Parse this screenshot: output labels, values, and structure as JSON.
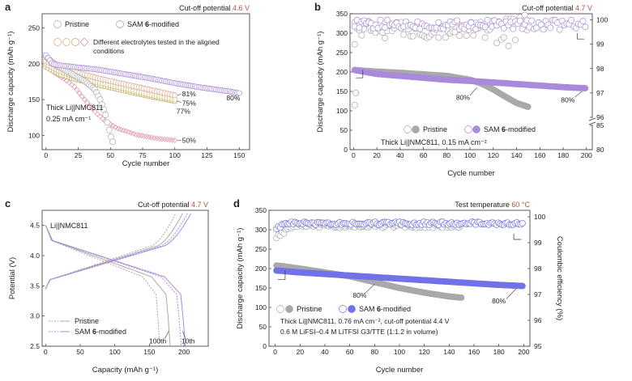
{
  "colors": {
    "pristine": "#a9a9a9",
    "sam": "#a98bdc",
    "sam_d": "#7272e8",
    "accent": "#c0504d",
    "e1": "#d8a889",
    "e2": "#d9b36a",
    "e3": "#b9a85a",
    "e4": "#d98a9a"
  },
  "legend_shared": {
    "pristine": "Pristine",
    "sam_prefix": "SAM ",
    "sam_bold": "6",
    "sam_suffix": "-modified"
  },
  "chart_data": [
    {
      "id": "a",
      "type": "scatter",
      "panel_label": "a",
      "cutoff_label": "Cut-off potential ",
      "cutoff_value": "4.6 V",
      "xlabel": "Cycle number",
      "ylabel": "Discharge capacity (mAh g⁻¹)",
      "xlim": [
        -3,
        158
      ],
      "ylim": [
        80,
        270
      ],
      "xticks": [
        "0",
        "25",
        "50",
        "75",
        "100",
        "125",
        "150"
      ],
      "xtick_values": [
        0,
        25,
        50,
        75,
        100,
        125,
        150
      ],
      "yticks": [
        "100",
        "150",
        "200",
        "250"
      ],
      "ytick_values": [
        100,
        150,
        200,
        250
      ],
      "legend": {
        "pristine": "Pristine",
        "sam_prefix": "SAM ",
        "sam_bold": "6",
        "sam_suffix": "-modified",
        "electrolytes_line1": "Different electrolytes tested in the aligned",
        "electrolytes_line2": "conditions"
      },
      "annotation_cell": "Thick Li||NMC811",
      "annotation_rate": "0.25 mA cm⁻¹",
      "end_labels": [
        "81%",
        "75%",
        "77%",
        "80%",
        "50%"
      ],
      "series": [
        {
          "key": "sam",
          "points": [
            [
              0,
              212
            ],
            [
              5,
              200
            ],
            [
              10,
              198
            ],
            [
              20,
              196
            ],
            [
              40,
              192
            ],
            [
              60,
              186
            ],
            [
              80,
              180
            ],
            [
              100,
              173
            ],
            [
              120,
              167
            ],
            [
              140,
              162
            ],
            [
              150,
              159
            ]
          ]
        },
        {
          "key": "pristine",
          "points": [
            [
              0,
              210
            ],
            [
              5,
              202
            ],
            [
              10,
              196
            ],
            [
              20,
              186
            ],
            [
              30,
              176
            ],
            [
              38,
              164
            ],
            [
              42,
              150
            ],
            [
              46,
              130
            ],
            [
              48,
              115
            ],
            [
              50,
              100
            ],
            [
              52,
              90
            ]
          ]
        },
        {
          "key": "e1",
          "points": [
            [
              0,
              204
            ],
            [
              10,
              195
            ],
            [
              20,
              190
            ],
            [
              40,
              180
            ],
            [
              60,
              172
            ],
            [
              80,
              164
            ],
            [
              100,
              156
            ]
          ]
        },
        {
          "key": "e2",
          "points": [
            [
              0,
              200
            ],
            [
              10,
              190
            ],
            [
              20,
              184
            ],
            [
              40,
              174
            ],
            [
              60,
              166
            ],
            [
              80,
              157
            ],
            [
              100,
              150
            ]
          ]
        },
        {
          "key": "e3",
          "points": [
            [
              0,
              196
            ],
            [
              10,
              186
            ],
            [
              20,
              180
            ],
            [
              40,
              171
            ],
            [
              60,
              163
            ],
            [
              80,
              155
            ],
            [
              100,
              148
            ]
          ]
        },
        {
          "key": "e4",
          "points": [
            [
              0,
              196
            ],
            [
              8,
              186
            ],
            [
              15,
              178
            ],
            [
              22,
              168
            ],
            [
              30,
              150
            ],
            [
              38,
              133
            ],
            [
              46,
              120
            ],
            [
              55,
              110
            ],
            [
              70,
              101
            ],
            [
              85,
              96
            ],
            [
              100,
              93
            ]
          ]
        }
      ]
    },
    {
      "id": "b",
      "type": "scatter",
      "panel_label": "b",
      "cutoff_label": "Cut-off potential ",
      "cutoff_value": "4.7 V",
      "xlabel": "Cycle number",
      "ylabel": "Discharge capacity (mAh g⁻¹)",
      "xlim": [
        -3,
        205
      ],
      "ylim": [
        0,
        350
      ],
      "xticks": [
        "0",
        "20",
        "40",
        "60",
        "80",
        "100",
        "120",
        "140",
        "160",
        "180",
        "200"
      ],
      "xtick_values": [
        0,
        20,
        40,
        60,
        80,
        100,
        120,
        140,
        160,
        180,
        200
      ],
      "yticks": [
        "0",
        "50",
        "100",
        "150",
        "200",
        "250",
        "300",
        "350"
      ],
      "ytick_values": [
        0,
        50,
        100,
        150,
        200,
        250,
        300,
        350
      ],
      "y2ticks": [
        "80",
        "85",
        "96",
        "97",
        "98",
        "99",
        "100"
      ],
      "y2_segments": [
        [
          80,
          85
        ],
        [
          96,
          100.25
        ]
      ],
      "legend": {
        "pristine": "Pristine",
        "sam_prefix": "SAM ",
        "sam_bold": "6",
        "sam_suffix": "-modified"
      },
      "annotation": "Thick Li||NMC811, 0.15 mA cm⁻²",
      "labels_80": [
        "80%",
        "80%"
      ],
      "series": [
        {
          "key": "pristine",
          "points": [
            [
              1,
              205
            ],
            [
              20,
              201
            ],
            [
              40,
              198
            ],
            [
              60,
              194
            ],
            [
              80,
              190
            ],
            [
              100,
              180
            ],
            [
              110,
              170
            ],
            [
              120,
              155
            ],
            [
              130,
              137
            ],
            [
              140,
              120
            ],
            [
              150,
              110
            ]
          ]
        },
        {
          "key": "sam",
          "points": [
            [
              1,
              205
            ],
            [
              20,
              195
            ],
            [
              40,
              190
            ],
            [
              60,
              185
            ],
            [
              80,
              180
            ],
            [
              100,
              177
            ],
            [
              120,
              173
            ],
            [
              140,
              169
            ],
            [
              160,
              165
            ],
            [
              180,
              161
            ],
            [
              200,
              158
            ]
          ]
        }
      ],
      "ce_levels": [
        99.6,
        99.8
      ]
    },
    {
      "id": "c",
      "type": "line",
      "panel_label": "c",
      "cutoff_label": "Cut-off potential ",
      "cutoff_value": "4.7 V",
      "xlabel": "Capacity (mAh g⁻¹)",
      "ylabel": "Potential (V)",
      "xlim": [
        -5,
        235
      ],
      "ylim": [
        2.5,
        4.75
      ],
      "xticks": [
        "0",
        "50",
        "100",
        "150",
        "200"
      ],
      "xtick_values": [
        0,
        50,
        100,
        150,
        200
      ],
      "yticks": [
        "2.5",
        "3.0",
        "3.5",
        "4.0",
        "4.5"
      ],
      "ytick_values": [
        2.5,
        3.0,
        3.5,
        4.0,
        4.5
      ],
      "cell_label": "Li||NMC811",
      "legend": {
        "pristine": "Pristine",
        "sam_prefix": "SAM ",
        "sam_bold": "6",
        "sam_suffix": "-modified"
      },
      "cycle_labels": [
        "100th",
        "10th"
      ],
      "series": [
        {
          "key": "pristine",
          "style": "dashed",
          "charge_end": 188,
          "discharge_end": 165
        },
        {
          "key": "pristine",
          "style": "solid",
          "charge_end": 198,
          "discharge_end": 180
        },
        {
          "key": "sam",
          "style": "dashed",
          "charge_end": 205,
          "discharge_end": 196
        },
        {
          "key": "sam",
          "style": "solid",
          "charge_end": 210,
          "discharge_end": 202
        }
      ]
    },
    {
      "id": "d",
      "type": "scatter",
      "panel_label": "d",
      "temp_label": "Test temperature ",
      "temp_value": "60 °C",
      "xlabel": "Cycle number",
      "ylabel": "Discharge capacity (mAh g⁻¹)",
      "y2label": "Coulombic efficiency (%)",
      "xlim": [
        -5,
        205
      ],
      "ylim": [
        0,
        350
      ],
      "xticks": [
        "0",
        "20",
        "40",
        "60",
        "80",
        "100",
        "120",
        "140",
        "160",
        "180",
        "200"
      ],
      "xtick_values": [
        0,
        20,
        40,
        60,
        80,
        100,
        120,
        140,
        160,
        180,
        200
      ],
      "yticks": [
        "0",
        "50",
        "100",
        "150",
        "200",
        "250",
        "300",
        "350"
      ],
      "ytick_values": [
        0,
        50,
        100,
        150,
        200,
        250,
        300,
        350
      ],
      "y2ticks": [
        "95",
        "96",
        "97",
        "98",
        "99",
        "100"
      ],
      "y2lim": [
        95,
        100.25
      ],
      "legend": {
        "pristine": "Pristine",
        "sam_prefix": "SAM ",
        "sam_bold": "6",
        "sam_suffix": "-modified"
      },
      "annotation_line1": "Thick Li||NMC811, 0.76 mA cm⁻², cut-off potential 4.4 V",
      "annotation_line2": "0.6 M LiFSI–0.4 M LiTFSI G3/TTE (1:1.2 in volume)",
      "labels_80": [
        "80%",
        "80%"
      ],
      "series": [
        {
          "key": "pristine",
          "points": [
            [
              1,
              208
            ],
            [
              20,
              200
            ],
            [
              40,
              190
            ],
            [
              60,
              180
            ],
            [
              80,
              165
            ],
            [
              100,
              150
            ],
            [
              120,
              138
            ],
            [
              140,
              128
            ],
            [
              150,
              125
            ]
          ]
        },
        {
          "key": "sam_d",
          "points": [
            [
              1,
              195
            ],
            [
              20,
              190
            ],
            [
              40,
              186
            ],
            [
              60,
              182
            ],
            [
              80,
              178
            ],
            [
              100,
              174
            ],
            [
              120,
              170
            ],
            [
              140,
              166
            ],
            [
              160,
              162
            ],
            [
              180,
              158
            ],
            [
              200,
              155
            ]
          ]
        }
      ],
      "ce_levels": [
        99.65,
        99.75
      ]
    }
  ]
}
